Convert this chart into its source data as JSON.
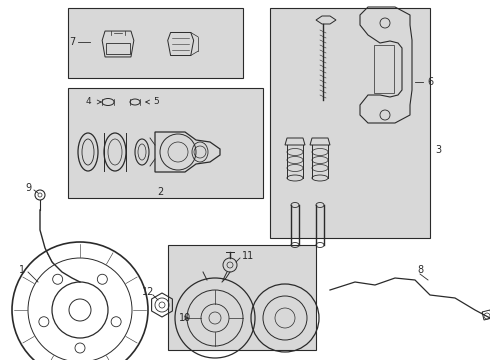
{
  "bg_color": "#ffffff",
  "line_color": "#2a2a2a",
  "box_bg": "#d8d8d8",
  "figw": 4.9,
  "figh": 3.6,
  "dpi": 100
}
